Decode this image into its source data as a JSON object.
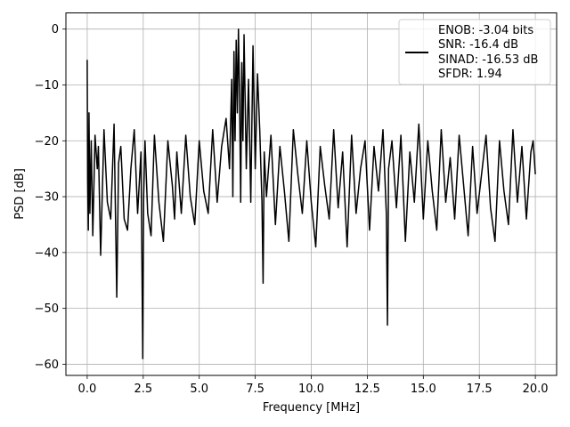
{
  "chart_data": {
    "type": "line",
    "title": "",
    "xlabel": "Frequency [MHz]",
    "ylabel": "PSD [dB]",
    "xlim": [
      -0.95,
      20.95
    ],
    "ylim": [
      -62.0,
      2.9
    ],
    "xticks": [
      0.0,
      2.5,
      5.0,
      7.5,
      10.0,
      12.5,
      15.0,
      17.5,
      20.0
    ],
    "xtick_labels": [
      "0.0",
      "2.5",
      "5.0",
      "7.5",
      "10.0",
      "12.5",
      "15.0",
      "17.5",
      "20.0"
    ],
    "yticks": [
      0,
      -10,
      -20,
      -30,
      -40,
      -50,
      -60
    ],
    "ytick_labels": [
      "0",
      "−10",
      "−20",
      "−30",
      "−40",
      "−50",
      "−60"
    ],
    "grid": true,
    "legend_position": "top-right",
    "series": [
      {
        "color": "#000000",
        "legend_lines": [
          "ENOB: -3.04 bits",
          "SNR: -16.4 dB",
          "SINAD: -16.53 dB",
          "SFDR: 1.94"
        ],
        "x": [
          0.0,
          0.02,
          0.05,
          0.08,
          0.12,
          0.18,
          0.25,
          0.35,
          0.45,
          0.5,
          0.6,
          0.75,
          0.9,
          1.05,
          1.2,
          1.32,
          1.4,
          1.5,
          1.65,
          1.8,
          1.95,
          2.1,
          2.25,
          2.4,
          2.48,
          2.52,
          2.58,
          2.7,
          2.85,
          3.0,
          3.2,
          3.4,
          3.6,
          3.8,
          3.9,
          4.0,
          4.2,
          4.4,
          4.6,
          4.8,
          5.0,
          5.2,
          5.4,
          5.6,
          5.8,
          6.0,
          6.2,
          6.35,
          6.45,
          6.5,
          6.55,
          6.6,
          6.65,
          6.7,
          6.75,
          6.8,
          6.85,
          6.9,
          6.95,
          7.0,
          7.1,
          7.2,
          7.3,
          7.4,
          7.5,
          7.6,
          7.7,
          7.8,
          7.85,
          7.9,
          8.0,
          8.2,
          8.4,
          8.6,
          8.8,
          9.0,
          9.2,
          9.4,
          9.6,
          9.8,
          10.0,
          10.2,
          10.4,
          10.6,
          10.8,
          11.0,
          11.2,
          11.4,
          11.6,
          11.8,
          12.0,
          12.2,
          12.4,
          12.6,
          12.8,
          13.0,
          13.2,
          13.35,
          13.4,
          13.45,
          13.6,
          13.8,
          14.0,
          14.2,
          14.4,
          14.6,
          14.8,
          15.0,
          15.2,
          15.4,
          15.6,
          15.8,
          16.0,
          16.2,
          16.4,
          16.6,
          16.8,
          17.0,
          17.2,
          17.4,
          17.6,
          17.8,
          18.0,
          18.2,
          18.4,
          18.6,
          18.8,
          19.0,
          19.2,
          19.4,
          19.6,
          19.8,
          19.9,
          20.0
        ],
        "y": [
          -5.5,
          -27,
          -36,
          -15,
          -33,
          -20,
          -37,
          -19,
          -25,
          -21,
          -40.5,
          -18,
          -31,
          -34,
          -17,
          -48,
          -24,
          -21,
          -34,
          -36,
          -25,
          -18,
          -33,
          -22,
          -59,
          -30,
          -20,
          -33,
          -37,
          -19,
          -31,
          -38,
          -20,
          -28,
          -34,
          -22,
          -33,
          -19,
          -30,
          -35,
          -20,
          -29,
          -33,
          -18,
          -31,
          -21,
          -16,
          -25,
          -9,
          -30,
          -4,
          -20,
          -2,
          -15,
          0,
          -12,
          -31,
          -6,
          -20,
          -1,
          -25,
          -9,
          -31,
          -3,
          -25,
          -8,
          -18,
          -31,
          -45.5,
          -22,
          -30,
          -19,
          -35,
          -21,
          -29,
          -38,
          -18,
          -26,
          -33,
          -20,
          -31,
          -39,
          -21,
          -28,
          -34,
          -18,
          -32,
          -22,
          -39,
          -19,
          -33,
          -25,
          -20,
          -36,
          -21,
          -29,
          -18,
          -33,
          -53,
          -25,
          -20,
          -32,
          -19,
          -38,
          -22,
          -31,
          -17,
          -34,
          -20,
          -29,
          -36,
          -18,
          -31,
          -23,
          -34,
          -19,
          -28,
          -37,
          -21,
          -33,
          -26,
          -19,
          -32,
          -38,
          -20,
          -29,
          -35,
          -18,
          -31,
          -21,
          -34,
          -22,
          -20,
          -26
        ]
      }
    ]
  }
}
